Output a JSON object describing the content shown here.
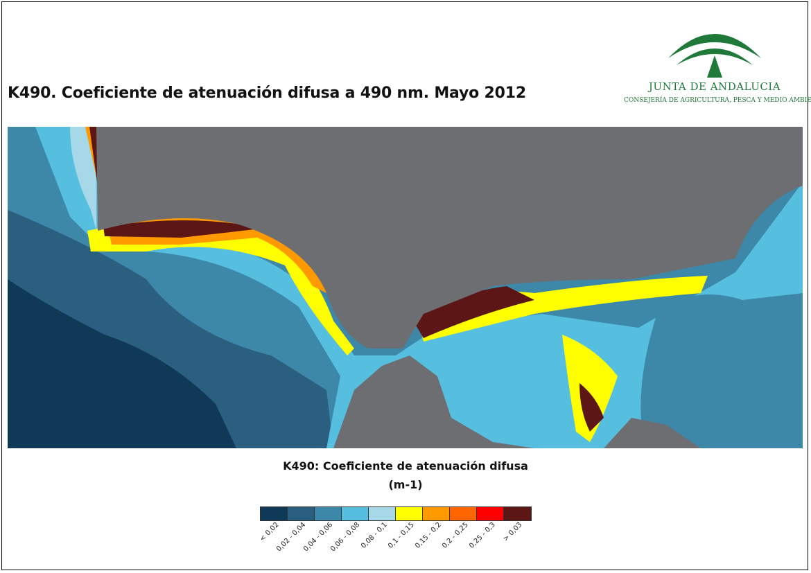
{
  "title": "K490. Coeficiente de atenuación difusa a 490 nm. Mayo 2012",
  "logo": {
    "name": "JUNTA DE ANDALUCIA",
    "department": "CONSEJERÍA DE AGRICULTURA, PESCA Y MEDIO AMBIENTE",
    "color": "#1f7a3a"
  },
  "map": {
    "land_color": "#6d6e72",
    "border_color": "#000000"
  },
  "legend": {
    "title": "K490: Coeficiente de atenuación difusa",
    "unit": "(m-1)",
    "classes": [
      {
        "label": "< 0,02",
        "color": "#0f3957"
      },
      {
        "label": "0,02 - 0,04",
        "color": "#2a5f80"
      },
      {
        "label": "0,04 - 0,06",
        "color": "#3d88a8"
      },
      {
        "label": "0,06 - 0,08",
        "color": "#56bfe0"
      },
      {
        "label": "0,08 - 0,1",
        "color": "#a6d8e8"
      },
      {
        "label": "0,1 - 0,15",
        "color": "#ffff00"
      },
      {
        "label": "0,15 - 0,2",
        "color": "#ff9900"
      },
      {
        "label": "0,2 - 0,25",
        "color": "#ff6600"
      },
      {
        "label": "0,25 - 0,3",
        "color": "#ff0000"
      },
      {
        "label": "> 0,03",
        "color": "#5c1616"
      }
    ]
  }
}
